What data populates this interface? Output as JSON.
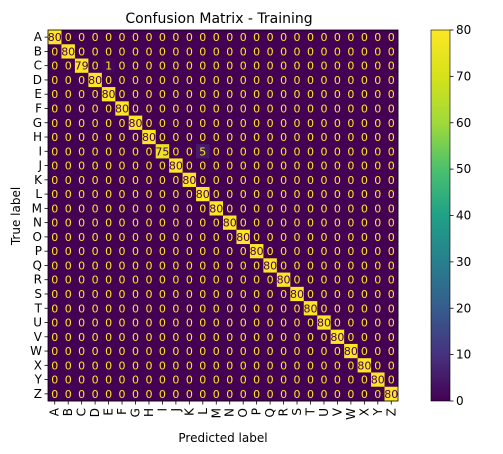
{
  "chart_data": {
    "type": "heatmap",
    "title": "Confusion Matrix - Training",
    "xlabel": "Predicted label",
    "ylabel": "True label",
    "labels": [
      "A",
      "B",
      "C",
      "D",
      "E",
      "F",
      "G",
      "H",
      "I",
      "J",
      "K",
      "L",
      "M",
      "N",
      "O",
      "P",
      "Q",
      "R",
      "S",
      "T",
      "U",
      "V",
      "W",
      "X",
      "Y",
      "Z"
    ],
    "diagonal": [
      80,
      80,
      79,
      80,
      80,
      80,
      80,
      80,
      75,
      80,
      80,
      80,
      80,
      80,
      80,
      80,
      80,
      80,
      80,
      80,
      80,
      80,
      80,
      80,
      80,
      80
    ],
    "off_diagonal": [
      {
        "true": "C",
        "pred": "E",
        "value": 1
      },
      {
        "true": "I",
        "pred": "L",
        "value": 5
      }
    ],
    "colormap": "viridis",
    "value_range": [
      0,
      80
    ],
    "colorbar_ticks": [
      0,
      10,
      20,
      30,
      40,
      50,
      60,
      70,
      80
    ]
  }
}
